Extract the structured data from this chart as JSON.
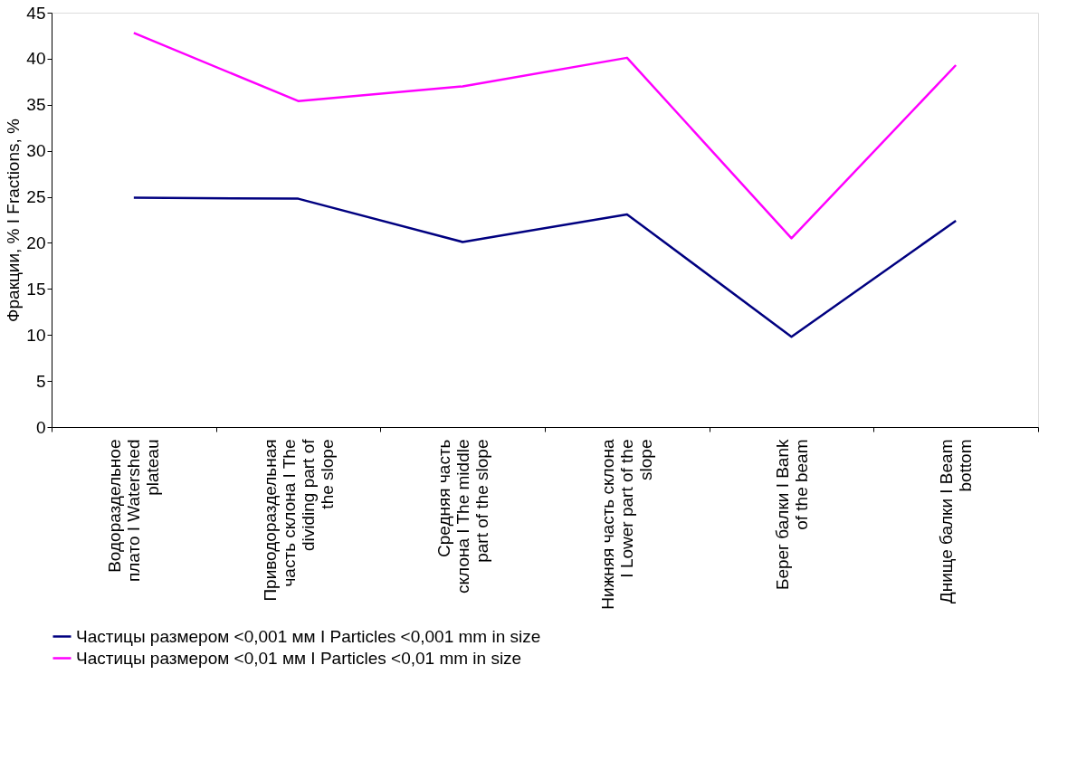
{
  "chart_data": {
    "type": "line",
    "ylabel": "Фракции, % I Fractions, %",
    "categories": [
      "Водораздельное плато I Watershed plateau",
      "Приводораздельная часть склона I The dividing part of the slope",
      "Средняя часть склона I The middle part of the slope",
      "Нижняя часть склона I Lower part of the slope",
      "Берег балки I Bank of the beam",
      "Днище балки I Beam bottom"
    ],
    "series": [
      {
        "name": "Частицы размером <0,001 мм I Particles <0,001 mm in size",
        "color": "#000080",
        "values": [
          24.9,
          24.8,
          20.1,
          23.1,
          9.8,
          22.4
        ]
      },
      {
        "name": "Частицы размером <0,01 мм I Particles <0,01 mm in size",
        "color": "#ff00ff",
        "values": [
          42.8,
          35.4,
          37.0,
          40.1,
          20.5,
          39.3
        ]
      }
    ],
    "ylim": [
      0,
      45
    ],
    "yticks": [
      0,
      5,
      10,
      15,
      20,
      25,
      30,
      35,
      40,
      45
    ],
    "grid": false,
    "legend": "bottom",
    "marker": "none",
    "line_style": "solid"
  }
}
